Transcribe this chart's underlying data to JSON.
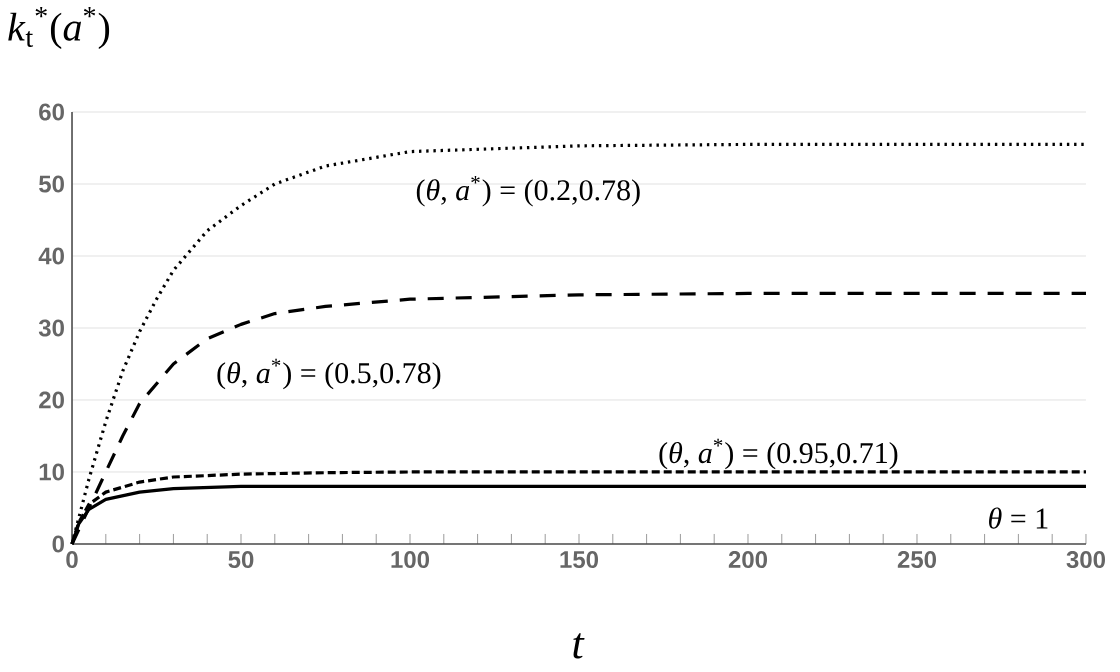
{
  "chart_data": {
    "type": "line",
    "xlabel": "*t*",
    "ylabel": "*k*$_{t}$$^{*}$(*a*$^{*}$)",
    "xlim": [
      0,
      300
    ],
    "ylim": [
      0,
      60
    ],
    "xticks": [
      0,
      50,
      100,
      150,
      200,
      250,
      300
    ],
    "yticks": [
      0,
      10,
      20,
      30,
      40,
      50,
      60
    ],
    "grid": "y",
    "marker": "none",
    "series": [
      {
        "name": "(*θ*, *a*$^{*}$) = (0.2,0.78)",
        "color": "#000000",
        "line_style": "dotted",
        "x": [
          0,
          5,
          10,
          15,
          20,
          25,
          30,
          40,
          50,
          60,
          75,
          100,
          150,
          200,
          300
        ],
        "values": [
          0,
          9,
          17,
          24,
          29.5,
          34,
          38,
          43.5,
          47,
          50,
          52.5,
          54.5,
          55.3,
          55.5,
          55.5
        ]
      },
      {
        "name": "(*θ*, *a*$^{*}$) = (0.5,0.78)",
        "color": "#000000",
        "line_style": "dashed",
        "x": [
          0,
          5,
          10,
          15,
          20,
          30,
          40,
          50,
          60,
          75,
          100,
          150,
          200,
          300
        ],
        "values": [
          0,
          5,
          10,
          15,
          19.5,
          25,
          28.5,
          30.5,
          32,
          33,
          34,
          34.6,
          34.8,
          34.8
        ]
      },
      {
        "name": "(*θ*, *a*$^{*}$) = (0.95,0.71)",
        "color": "#000000",
        "line_style": "dashed",
        "x": [
          0,
          2,
          5,
          10,
          20,
          30,
          50,
          75,
          100,
          300
        ],
        "values": [
          0,
          3,
          5.5,
          7.2,
          8.6,
          9.3,
          9.7,
          9.9,
          10,
          10
        ]
      },
      {
        "name": "*θ* = 1",
        "color": "#000000",
        "line_style": "solid",
        "x": [
          0,
          2,
          5,
          10,
          20,
          30,
          50,
          100,
          300
        ],
        "values": [
          0,
          2.8,
          4.8,
          6.2,
          7.2,
          7.7,
          8,
          8,
          8
        ]
      }
    ]
  }
}
